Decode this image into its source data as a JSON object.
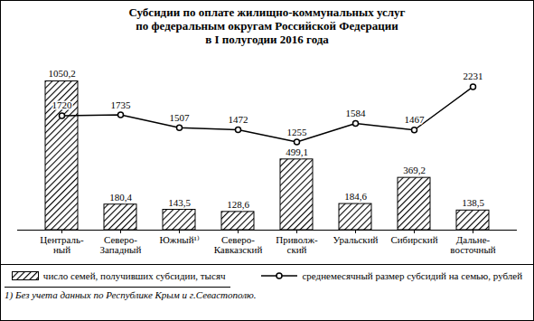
{
  "chart_data": {
    "type": "bar",
    "title": "Субсидии по оплате жилищно-коммунальных услуг\nпо федеральным округам Российской Федерации\nв I полугодии 2016 года",
    "categories": [
      "Централь-\nный",
      "Северо-\nЗападный",
      "Южный¹⁾",
      "Северо-\nКавказский",
      "Приволж-\nский",
      "Уральский",
      "Сибирский",
      "Дальне-\nвосточный"
    ],
    "series": [
      {
        "name": "число семей, получивших субсидии, тысяч",
        "type": "bar",
        "color": "#000000",
        "values": [
          1050.2,
          180.4,
          143.5,
          128.6,
          499.1,
          184.6,
          369.2,
          138.5
        ],
        "value_labels": [
          "1050,2",
          "180,4",
          "143,5",
          "128,6",
          "499,1",
          "184,6",
          "369,2",
          "138,5"
        ]
      },
      {
        "name": "среднемесячный размер субсидий на семью, рублей",
        "type": "line",
        "axis": "y2",
        "color": "#000000",
        "marker": "circle",
        "values": [
          1720,
          1735,
          1507,
          1472,
          1255,
          1584,
          1467,
          2231
        ]
      }
    ],
    "ylim": [
      0,
      1200
    ],
    "y2lim": [
      -300,
      2700
    ],
    "data_labels": true,
    "tick_labels": "x",
    "grid": false,
    "legend": "bottom",
    "footnote": "1) Без учета данных по Республике Крым и г.Севастополю."
  }
}
